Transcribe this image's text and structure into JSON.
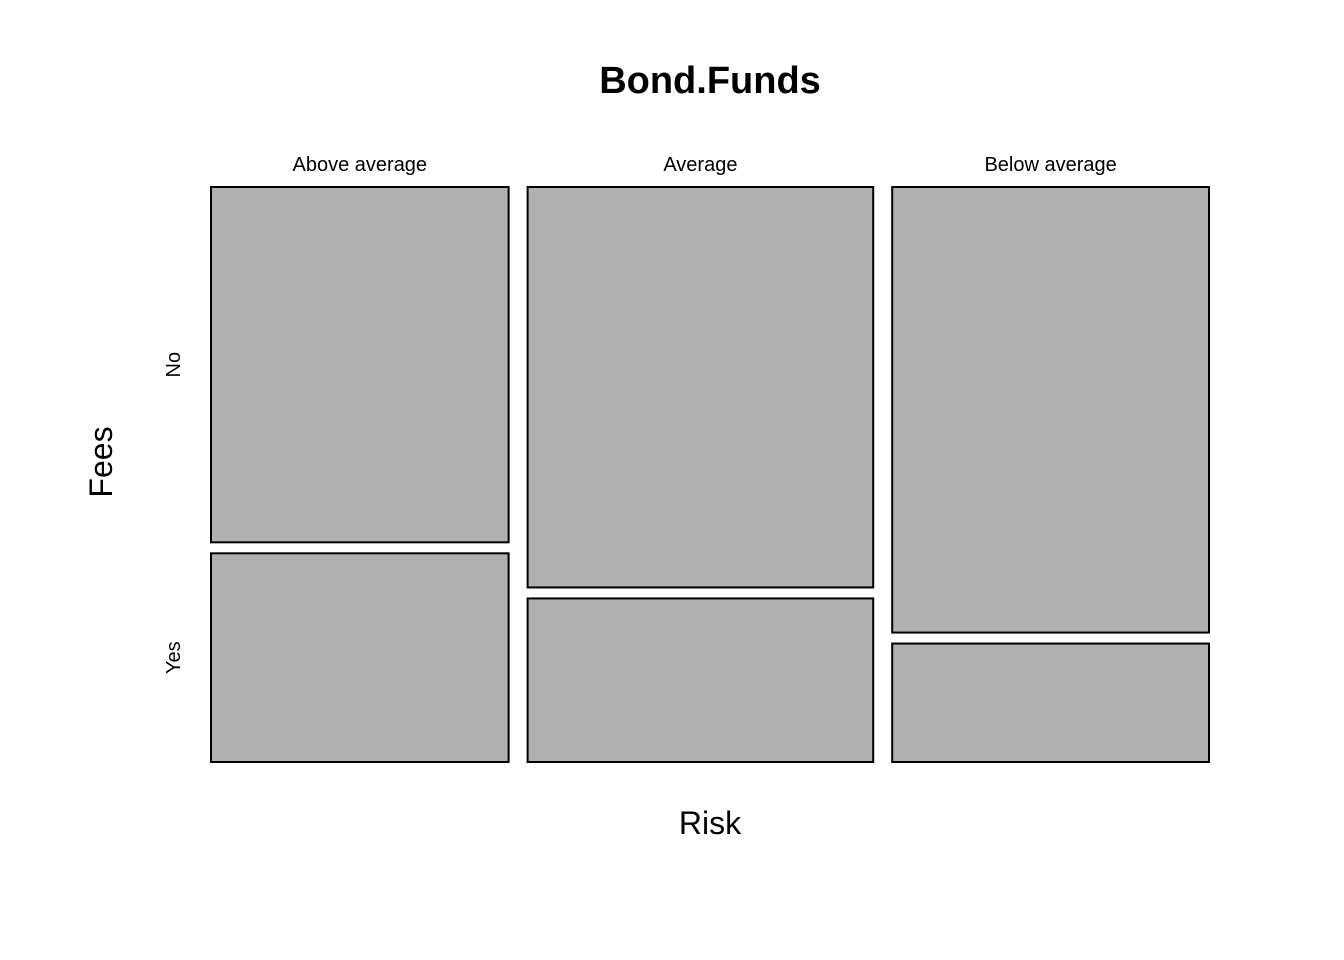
{
  "chart_data": {
    "type": "mosaic",
    "title": "Bond.Funds",
    "xlabel": "Risk",
    "ylabel": "Fees",
    "x_categories": [
      "Above average",
      "Average",
      "Below average"
    ],
    "y_categories": [
      "No",
      "Yes"
    ],
    "column_proportions": [
      0.31,
      0.36,
      0.33
    ],
    "series": [
      {
        "name": "No",
        "values": [
          0.63,
          0.71,
          0.79
        ]
      },
      {
        "name": "Yes",
        "values": [
          0.37,
          0.29,
          0.21
        ]
      }
    ],
    "fill_color": "#b0b0b0",
    "stroke_color": "#000000",
    "grid": false,
    "legend": "none"
  }
}
